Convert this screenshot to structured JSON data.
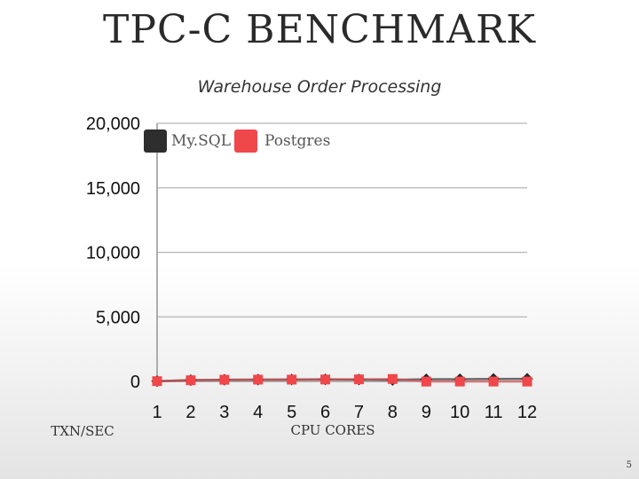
{
  "slide": {
    "title": "TPC-C BENCHMARK",
    "page_number": "5"
  },
  "colors": {
    "mysql": "#2e2e2e",
    "postgres": "#f0474b"
  },
  "chart_data": {
    "type": "line",
    "title": "",
    "subtitle": "Warehouse Order Processing",
    "xlabel": "CPU CORES",
    "ylabel": "TXN/SEC",
    "categories": [
      "1",
      "2",
      "3",
      "4",
      "5",
      "6",
      "7",
      "8",
      "9",
      "10",
      "11",
      "12"
    ],
    "y_ticks": [
      "0",
      "5,000",
      "10,000",
      "15,000",
      "20,000"
    ],
    "ylim": [
      0,
      20000
    ],
    "grid": true,
    "legend_position": "top-left",
    "series": [
      {
        "name": "My.SQL",
        "color": "#2e2e2e",
        "marker": "diamond",
        "values": [
          20,
          100,
          130,
          140,
          150,
          160,
          150,
          120,
          160,
          170,
          190,
          200
        ]
      },
      {
        "name": "Postgres",
        "color": "#f0474b",
        "marker": "square",
        "values": [
          20,
          90,
          130,
          140,
          140,
          150,
          160,
          190,
          -10,
          -10,
          -10,
          -10
        ]
      }
    ]
  }
}
